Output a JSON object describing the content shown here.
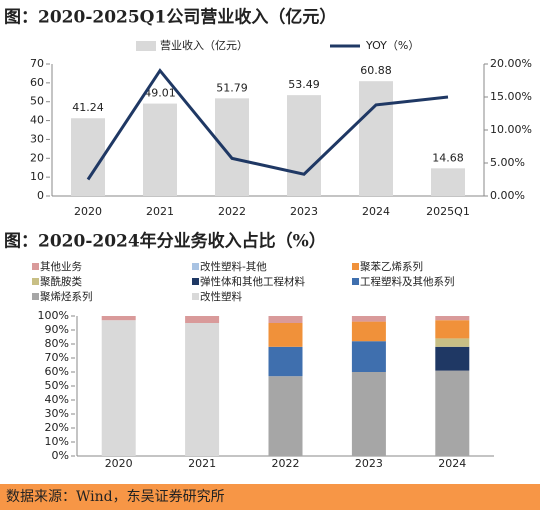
{
  "chart_data": [
    {
      "type": "bar",
      "title": "图：2020-2025Q1公司营业收入（亿元）",
      "categories": [
        "2020",
        "2021",
        "2022",
        "2023",
        "2024",
        "2025Q1"
      ],
      "series": [
        {
          "name": "营业收入（亿元）",
          "color": "#d9d9d9",
          "values": [
            41.24,
            49.01,
            51.79,
            53.49,
            60.88,
            14.68
          ]
        },
        {
          "name": "YOY（%）",
          "color": "#1f3864",
          "axis": "y2",
          "values": [
            2.5,
            19.0,
            5.7,
            3.3,
            13.8,
            15.0
          ]
        }
      ],
      "ylim": [
        0,
        70
      ],
      "yticks": [
        0,
        10,
        20,
        30,
        40,
        50,
        60,
        70
      ],
      "y2lim": [
        0,
        20
      ],
      "y2ticks": [
        {
          "value": 0,
          "label": "0.00%"
        },
        {
          "value": 5,
          "label": "5.00%"
        },
        {
          "value": 10,
          "label": "10.00%"
        },
        {
          "value": 15,
          "label": "15.00%"
        },
        {
          "value": 20,
          "label": "20.00%"
        }
      ]
    },
    {
      "type": "stacked_bar",
      "title": "图：2020-2024年分业务收入占比（%）",
      "categories": [
        "2020",
        "2021",
        "2022",
        "2023",
        "2024"
      ],
      "series": [
        {
          "name": "聚烯烃系列",
          "color": "#a6a6a6",
          "values": [
            null,
            null,
            57,
            60,
            61
          ]
        },
        {
          "name": "改性塑料",
          "color": "#d9d9d9",
          "values": [
            97,
            95,
            null,
            null,
            null
          ]
        },
        {
          "name": "工程塑料及其他系列",
          "color": "#3f6fae",
          "values": [
            null,
            null,
            21,
            22,
            null
          ]
        },
        {
          "name": "弹性体和其他工程材料",
          "color": "#1f3864",
          "values": [
            null,
            null,
            null,
            null,
            17
          ]
        },
        {
          "name": "聚酰胺类",
          "color": "#c8bf85",
          "values": [
            null,
            null,
            null,
            null,
            6
          ]
        },
        {
          "name": "聚苯乙烯系列",
          "color": "#f0913a",
          "values": [
            null,
            null,
            17,
            14,
            13
          ]
        },
        {
          "name": "改性塑料-其他",
          "color": "#a9c3e3",
          "values": [
            null,
            null,
            null,
            null,
            null
          ]
        },
        {
          "name": "其他业务",
          "color": "#d99a9a",
          "values": [
            3,
            5,
            5,
            4,
            3
          ]
        }
      ],
      "ylim": [
        0,
        100
      ],
      "yticks": [
        {
          "value": 0,
          "label": "0%"
        },
        {
          "value": 10,
          "label": "10%"
        },
        {
          "value": 20,
          "label": "20%"
        },
        {
          "value": 30,
          "label": "30%"
        },
        {
          "value": 40,
          "label": "40%"
        },
        {
          "value": 50,
          "label": "50%"
        },
        {
          "value": 60,
          "label": "60%"
        },
        {
          "value": 70,
          "label": "70%"
        },
        {
          "value": 80,
          "label": "80%"
        },
        {
          "value": 90,
          "label": "90%"
        },
        {
          "value": 100,
          "label": "100%"
        }
      ]
    }
  ],
  "footer": "数据来源：Wind，东吴证券研究所"
}
